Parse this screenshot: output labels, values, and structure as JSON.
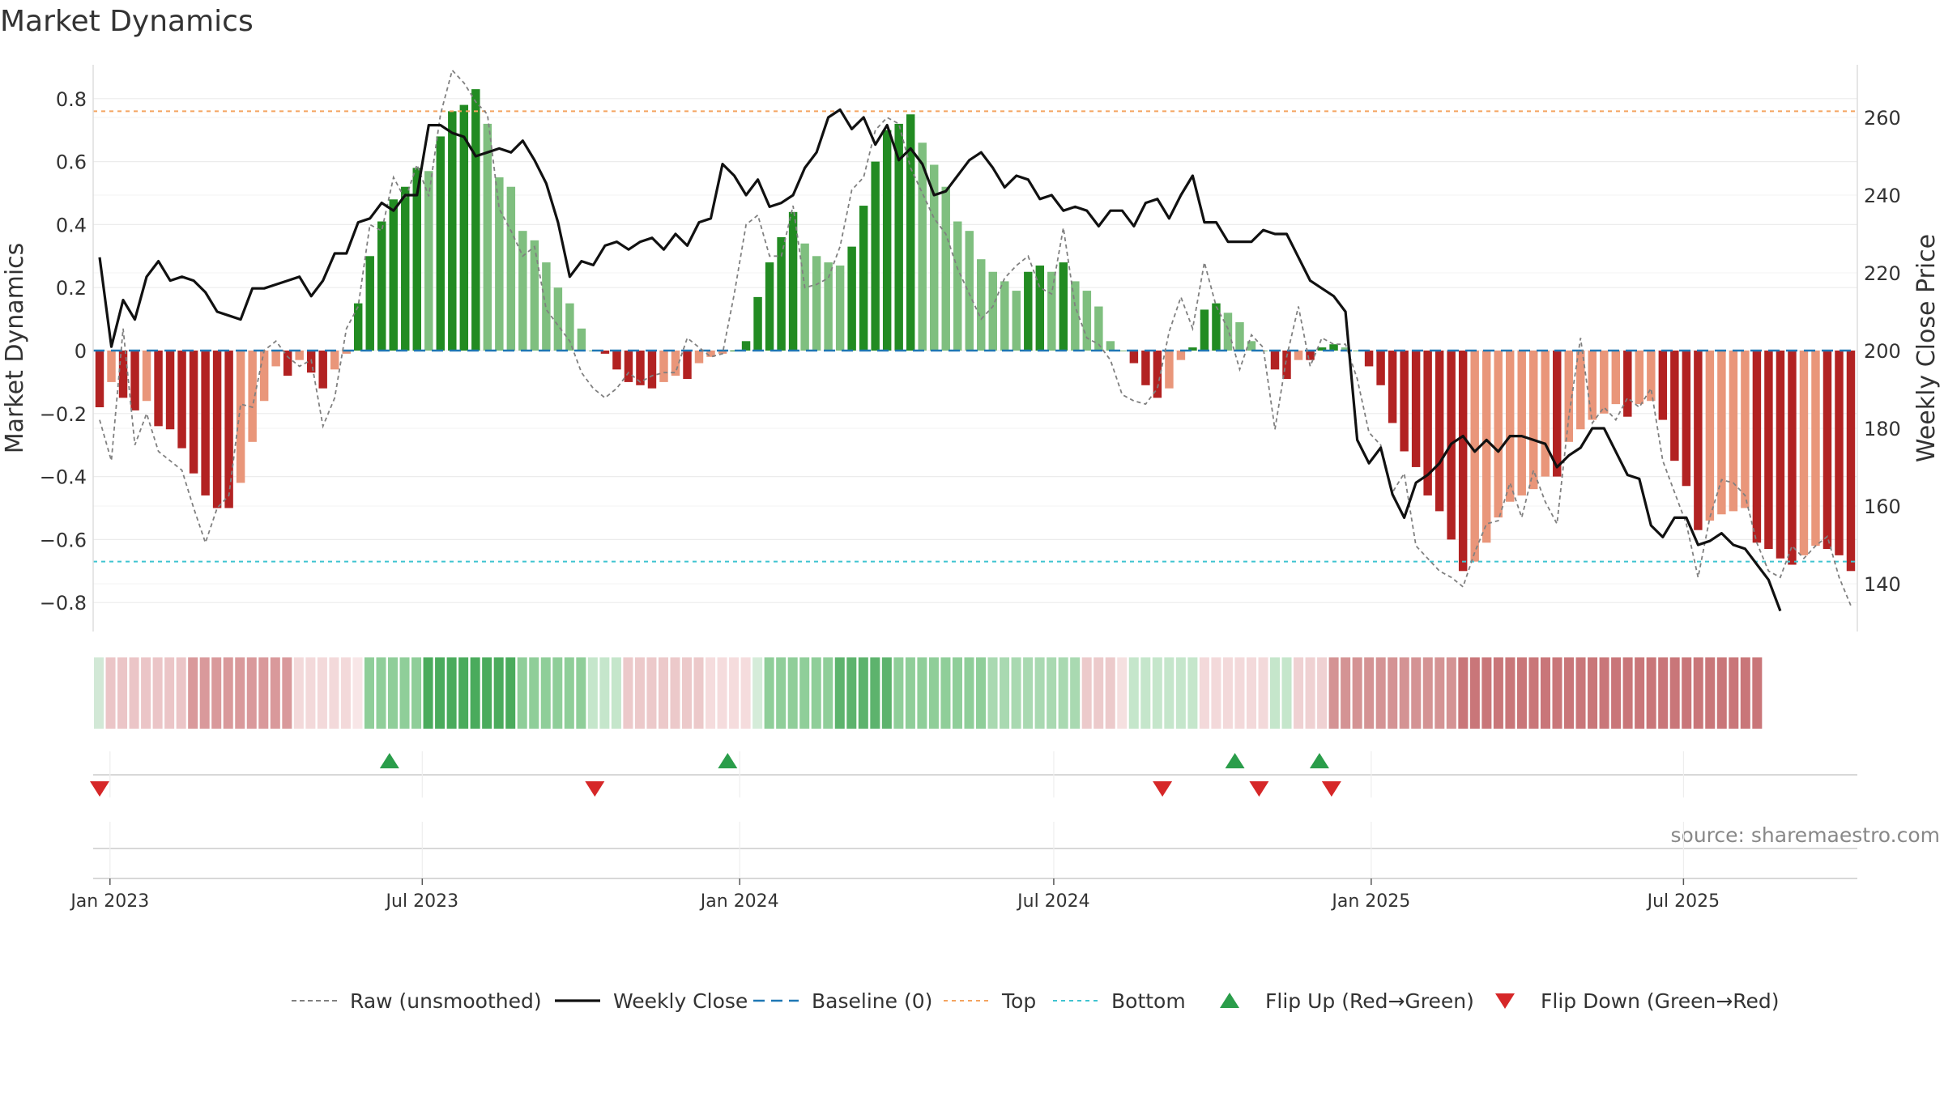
{
  "chart_data": {
    "type": "bar",
    "title": "Market Dynamics",
    "ylabel": "Market Dynamics",
    "y2label": "Weekly Close Price",
    "ylim": [
      -0.9,
      0.9
    ],
    "y2lim": [
      130,
      270
    ],
    "x_start": "2022-12-26",
    "x_end": "2025-10-06",
    "yticks": [
      -0.8,
      -0.6,
      -0.4,
      -0.2,
      0,
      0.2,
      0.4,
      0.6,
      0.8
    ],
    "ytick_labels": [
      "−0.8",
      "−0.6",
      "−0.4",
      "−0.2",
      "0",
      "0.2",
      "0.4",
      "0.6",
      "0.8"
    ],
    "y2ticks": [
      140,
      160,
      180,
      200,
      220,
      240,
      260
    ],
    "y2tick_labels": [
      "140",
      "160",
      "180",
      "200",
      "220",
      "240",
      "260"
    ],
    "xticks": [
      {
        "date": "2023-01-01",
        "label": "Jan 2023"
      },
      {
        "date": "2023-07-01",
        "label": "Jul 2023"
      },
      {
        "date": "2024-01-01",
        "label": "Jan 2024"
      },
      {
        "date": "2024-07-01",
        "label": "Jul 2024"
      },
      {
        "date": "2025-01-01",
        "label": "Jan 2025"
      },
      {
        "date": "2025-07-01",
        "label": "Jul 2025"
      }
    ],
    "top_level": 0.76,
    "bottom_level": -0.67,
    "baseline": 0,
    "grid": true,
    "legend_position": "bottom",
    "series_bars_name": "Market Dynamics",
    "values": [
      -0.18,
      -0.1,
      -0.15,
      -0.19,
      -0.16,
      -0.24,
      -0.25,
      -0.31,
      -0.39,
      -0.46,
      -0.5,
      -0.5,
      -0.42,
      -0.29,
      -0.16,
      -0.05,
      -0.08,
      -0.03,
      -0.07,
      -0.12,
      -0.06,
      -0.01,
      0.15,
      0.3,
      0.41,
      0.48,
      0.52,
      0.58,
      0.57,
      0.68,
      0.76,
      0.78,
      0.83,
      0.72,
      0.55,
      0.52,
      0.38,
      0.35,
      0.28,
      0.2,
      0.15,
      0.07,
      0.0,
      -0.01,
      -0.06,
      -0.1,
      -0.11,
      -0.12,
      -0.1,
      -0.08,
      -0.09,
      -0.04,
      -0.02,
      -0.01,
      0.0,
      0.03,
      0.17,
      0.28,
      0.36,
      0.44,
      0.34,
      0.3,
      0.28,
      0.27,
      0.33,
      0.46,
      0.6,
      0.7,
      0.72,
      0.75,
      0.66,
      0.59,
      0.52,
      0.41,
      0.38,
      0.29,
      0.25,
      0.22,
      0.19,
      0.25,
      0.27,
      0.25,
      0.28,
      0.22,
      0.19,
      0.14,
      0.03,
      0.0,
      -0.04,
      -0.11,
      -0.15,
      -0.12,
      -0.03,
      0.01,
      0.13,
      0.15,
      0.12,
      0.09,
      0.03,
      0.0,
      -0.06,
      -0.09,
      -0.03,
      -0.03,
      0.01,
      0.02,
      0.01,
      0.0,
      -0.05,
      -0.11,
      -0.23,
      -0.32,
      -0.37,
      -0.46,
      -0.51,
      -0.6,
      -0.7,
      -0.67,
      -0.61,
      -0.53,
      -0.48,
      -0.46,
      -0.44,
      -0.4,
      -0.4,
      -0.29,
      -0.25,
      -0.22,
      -0.2,
      -0.17,
      -0.21,
      -0.17,
      -0.16,
      -0.22,
      -0.35,
      -0.43,
      -0.57,
      -0.54,
      -0.52,
      -0.51,
      -0.5,
      -0.61,
      -0.63,
      -0.66,
      -0.68,
      -0.65,
      -0.62,
      -0.63,
      -0.65,
      -0.7
    ],
    "raw_values": [
      -0.22,
      -0.35,
      0.07,
      -0.3,
      -0.2,
      -0.32,
      -0.35,
      -0.38,
      -0.5,
      -0.61,
      -0.5,
      -0.46,
      -0.17,
      -0.18,
      0.0,
      0.03,
      -0.02,
      -0.05,
      -0.03,
      -0.24,
      -0.15,
      0.07,
      0.14,
      0.4,
      0.38,
      0.55,
      0.48,
      0.59,
      0.49,
      0.75,
      0.89,
      0.85,
      0.79,
      0.75,
      0.45,
      0.38,
      0.3,
      0.33,
      0.13,
      0.08,
      0.03,
      -0.07,
      -0.12,
      -0.15,
      -0.12,
      -0.07,
      -0.1,
      -0.08,
      -0.07,
      -0.07,
      0.04,
      0.01,
      -0.02,
      -0.01,
      0.18,
      0.4,
      0.43,
      0.3,
      0.3,
      0.46,
      0.2,
      0.21,
      0.23,
      0.33,
      0.51,
      0.55,
      0.7,
      0.74,
      0.72,
      0.58,
      0.5,
      0.42,
      0.37,
      0.26,
      0.18,
      0.1,
      0.14,
      0.23,
      0.27,
      0.3,
      0.2,
      0.18,
      0.39,
      0.14,
      0.04,
      0.02,
      -0.03,
      -0.14,
      -0.16,
      -0.17,
      -0.12,
      0.06,
      0.17,
      0.07,
      0.28,
      0.14,
      0.07,
      -0.06,
      0.05,
      0.01,
      -0.25,
      -0.02,
      0.14,
      -0.05,
      0.04,
      0.02,
      0.02,
      -0.09,
      -0.26,
      -0.3,
      -0.45,
      -0.39,
      -0.62,
      -0.66,
      -0.7,
      -0.72,
      -0.75,
      -0.64,
      -0.55,
      -0.54,
      -0.42,
      -0.53,
      -0.38,
      -0.48,
      -0.55,
      -0.21,
      0.04,
      -0.23,
      -0.18,
      -0.22,
      -0.15,
      -0.18,
      -0.12,
      -0.35,
      -0.45,
      -0.55,
      -0.72,
      -0.53,
      -0.41,
      -0.42,
      -0.46,
      -0.61,
      -0.7,
      -0.72,
      -0.62,
      -0.66,
      -0.62,
      -0.59,
      -0.72,
      -0.81
    ],
    "price_values": [
      224,
      201,
      213,
      208,
      219,
      223,
      218,
      219,
      218,
      215,
      210,
      209,
      208,
      216,
      216,
      217,
      218,
      219,
      214,
      218,
      225,
      225,
      233,
      234,
      238,
      236,
      240,
      240,
      258,
      258,
      256,
      255,
      250,
      251,
      252,
      251,
      254,
      249,
      243,
      233,
      219,
      223,
      222,
      227,
      228,
      226,
      228,
      229,
      226,
      230,
      227,
      233,
      234,
      248,
      245,
      240,
      244,
      237,
      238,
      240,
      247,
      251,
      260,
      262,
      257,
      260,
      253,
      258,
      249,
      252,
      248,
      240,
      241,
      245,
      249,
      251,
      247,
      242,
      245,
      244,
      239,
      240,
      236,
      237,
      236,
      232,
      236,
      236,
      232,
      238,
      239,
      234,
      240,
      245,
      233,
      233,
      228,
      228,
      228,
      231,
      230,
      230,
      224,
      218,
      216,
      214,
      210,
      177,
      171,
      175,
      163,
      157,
      166,
      168,
      171,
      176,
      178,
      174,
      177,
      174,
      178,
      178,
      177,
      176,
      170,
      173,
      175,
      180,
      180,
      174,
      168,
      167,
      155,
      152,
      157,
      157,
      150,
      151,
      153,
      150,
      149,
      145,
      141,
      133
    ],
    "regime_colors": [
      {
        "weeks": 1,
        "color": "#d2e8d6"
      },
      {
        "weeks": 7,
        "color": "#ebc5c7"
      },
      {
        "weeks": 9,
        "color": "#d9999b"
      },
      {
        "weeks": 5,
        "color": "#f3d9da"
      },
      {
        "weeks": 1,
        "color": "#f8e6e7"
      },
      {
        "weeks": 5,
        "color": "#8fce99"
      },
      {
        "weeks": 8,
        "color": "#4aab5c"
      },
      {
        "weeks": 6,
        "color": "#8fce99"
      },
      {
        "weeks": 3,
        "color": "#c5e6cb"
      },
      {
        "weeks": 7,
        "color": "#ecc9ca"
      },
      {
        "weeks": 4,
        "color": "#f5dcdd"
      },
      {
        "weeks": 1,
        "color": "#d5ecd9"
      },
      {
        "weeks": 6,
        "color": "#8fce99"
      },
      {
        "weeks": 5,
        "color": "#5db36d"
      },
      {
        "weeks": 8,
        "color": "#8fce99"
      },
      {
        "weeks": 8,
        "color": "#a9d9b1"
      },
      {
        "weeks": 3,
        "color": "#eccacb"
      },
      {
        "weeks": 1,
        "color": "#f5e0e0"
      },
      {
        "weeks": 6,
        "color": "#c5e6cb"
      },
      {
        "weeks": 6,
        "color": "#f3d9da"
      },
      {
        "weeks": 2,
        "color": "#c5e6cb"
      },
      {
        "weeks": 3,
        "color": "#efd1d2"
      },
      {
        "weeks": 11,
        "color": "#d49394"
      },
      {
        "weeks": 26,
        "color": "#c97679"
      }
    ],
    "flip_up_dates": [
      "2023-06-12",
      "2023-12-25",
      "2024-10-14",
      "2024-12-02"
    ],
    "flip_down_dates": [
      "2022-12-26",
      "2023-10-09",
      "2024-09-02",
      "2024-10-28",
      "2024-12-09"
    ],
    "legend": [
      {
        "label": "Raw (unsmoothed)",
        "kind": "dash-gray"
      },
      {
        "label": "Weekly Close",
        "kind": "line-black"
      },
      {
        "label": "Baseline (0)",
        "kind": "dash-blue"
      },
      {
        "label": "Top",
        "kind": "dot-orange"
      },
      {
        "label": "Bottom",
        "kind": "dot-cyan"
      },
      {
        "label": "Flip Up (Red→Green)",
        "kind": "tri-up"
      },
      {
        "label": "Flip Down (Green→Red)",
        "kind": "tri-down"
      }
    ],
    "source_note": "source: sharemaestro.com"
  },
  "colors": {
    "strong_green": "#228b22",
    "light_green": "#7fbf7f",
    "strong_red": "#b22222",
    "light_red": "#e9967a",
    "price_line": "#111111",
    "raw_line": "#808080",
    "baseline": "#1f77b4",
    "top": "#f4a460",
    "bottom": "#40c4d0",
    "flip_up": "#2a9d4a",
    "flip_down": "#d62728"
  }
}
